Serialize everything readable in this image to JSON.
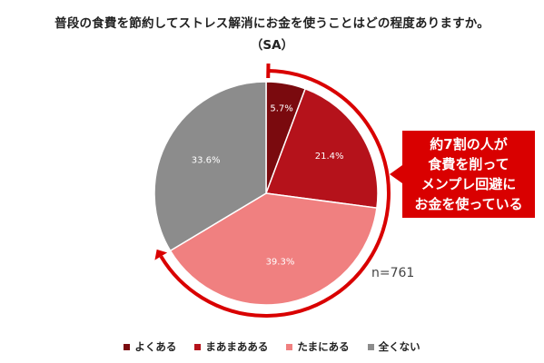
{
  "title": "普段の食費を節約してストレス解消にお金を使うことはどの程度ありますか。",
  "subtitle": "（SA）",
  "callout": {
    "lines": [
      "約7割の人が",
      "食費を削って",
      "メンプレ回避に",
      "お金を使っている"
    ]
  },
  "n_label": "n=761",
  "chart_data": {
    "type": "pie",
    "slices": [
      {
        "label": "よくある",
        "value": 5.7,
        "display": "5.7%",
        "color": "#7a0a0e"
      },
      {
        "label": "まあまあある",
        "value": 21.4,
        "display": "21.4%",
        "color": "#b5121b"
      },
      {
        "label": "たまにある",
        "value": 39.3,
        "display": "39.3%",
        "color": "#f08080"
      },
      {
        "label": "全くない",
        "value": 33.6,
        "display": "33.6%",
        "color": "#8c8c8c"
      }
    ],
    "start": "top",
    "direction": "clockwise",
    "legend_position": "bottom"
  },
  "colors": {
    "accent": "#d90000"
  }
}
